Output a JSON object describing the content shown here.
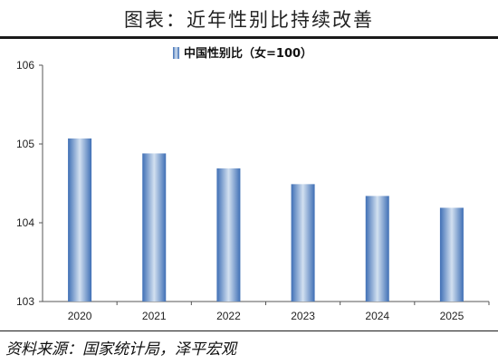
{
  "header": {
    "title": "图表：近年性别比持续改善"
  },
  "footer": {
    "source": "资料来源：国家统计局，泽平宏观"
  },
  "chart_data": {
    "type": "bar",
    "title": "",
    "xlabel": "",
    "ylabel": "",
    "categories": [
      "2020",
      "2021",
      "2022",
      "2023",
      "2024",
      "2025"
    ],
    "series": [
      {
        "name": "中国性别比（女=100）",
        "values": [
          105.07,
          104.88,
          104.69,
          104.49,
          104.34,
          104.19
        ]
      }
    ],
    "ylim": [
      103,
      106
    ],
    "yticks": [
      "103",
      "104",
      "105",
      "106"
    ],
    "grid": false,
    "legend": "top-center",
    "colors": {
      "bar_edge": "#3f6fb5",
      "bar_center": "#d2e0f0"
    }
  }
}
